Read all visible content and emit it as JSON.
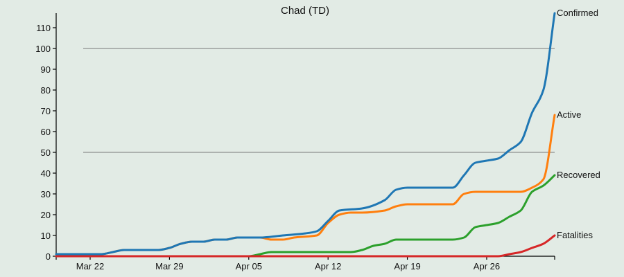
{
  "chart_data": {
    "type": "line",
    "title": "Chad (TD)",
    "xlabel": "",
    "ylabel": "",
    "x_start": "2020-03-19",
    "x_end": "2020-05-01",
    "xlim": [
      "2020-03-19",
      "2020-05-01"
    ],
    "ylim": [
      0,
      117
    ],
    "x_ticks": [
      {
        "date": "2020-03-22",
        "label": "Mar 22"
      },
      {
        "date": "2020-03-29",
        "label": "Mar 29"
      },
      {
        "date": "2020-04-05",
        "label": "Apr 05"
      },
      {
        "date": "2020-04-12",
        "label": "Apr 12"
      },
      {
        "date": "2020-04-19",
        "label": "Apr 19"
      },
      {
        "date": "2020-04-26",
        "label": "Apr 26"
      }
    ],
    "y_ticks": [
      0,
      10,
      20,
      30,
      40,
      50,
      60,
      70,
      80,
      90,
      100,
      110
    ],
    "gridlines_y": [
      50,
      100
    ],
    "series": [
      {
        "name": "Confirmed",
        "color": "#1f77b4",
        "points": [
          [
            "2020-03-19",
            1
          ],
          [
            "2020-03-23",
            1
          ],
          [
            "2020-03-24",
            2
          ],
          [
            "2020-03-25",
            3
          ],
          [
            "2020-03-28",
            3
          ],
          [
            "2020-03-29",
            4
          ],
          [
            "2020-03-30",
            6
          ],
          [
            "2020-03-31",
            7
          ],
          [
            "2020-04-01",
            7
          ],
          [
            "2020-04-02",
            8
          ],
          [
            "2020-04-03",
            8
          ],
          [
            "2020-04-04",
            9
          ],
          [
            "2020-04-06",
            9
          ],
          [
            "2020-04-08",
            10
          ],
          [
            "2020-04-10",
            11
          ],
          [
            "2020-04-11",
            12
          ],
          [
            "2020-04-12",
            17
          ],
          [
            "2020-04-13",
            22
          ],
          [
            "2020-04-15",
            23
          ],
          [
            "2020-04-17",
            27
          ],
          [
            "2020-04-18",
            32
          ],
          [
            "2020-04-19",
            33
          ],
          [
            "2020-04-23",
            33
          ],
          [
            "2020-04-24",
            39
          ],
          [
            "2020-04-25",
            45
          ],
          [
            "2020-04-26",
            46
          ],
          [
            "2020-04-27",
            47
          ],
          [
            "2020-04-28",
            51
          ],
          [
            "2020-04-29",
            55
          ],
          [
            "2020-04-30",
            69
          ],
          [
            "2020-05-01",
            80
          ],
          [
            "2020-05-02",
            117
          ]
        ]
      },
      {
        "name": "Active",
        "color": "#ff7f0e",
        "points": [
          [
            "2020-03-19",
            1
          ],
          [
            "2020-03-23",
            1
          ],
          [
            "2020-03-24",
            2
          ],
          [
            "2020-03-25",
            3
          ],
          [
            "2020-03-28",
            3
          ],
          [
            "2020-03-29",
            4
          ],
          [
            "2020-03-30",
            6
          ],
          [
            "2020-03-31",
            7
          ],
          [
            "2020-04-01",
            7
          ],
          [
            "2020-04-02",
            8
          ],
          [
            "2020-04-03",
            8
          ],
          [
            "2020-04-04",
            9
          ],
          [
            "2020-04-06",
            9
          ],
          [
            "2020-04-07",
            8
          ],
          [
            "2020-04-08",
            8
          ],
          [
            "2020-04-09",
            9
          ],
          [
            "2020-04-11",
            10
          ],
          [
            "2020-04-12",
            16
          ],
          [
            "2020-04-13",
            20
          ],
          [
            "2020-04-14",
            21
          ],
          [
            "2020-04-15",
            21
          ],
          [
            "2020-04-17",
            22
          ],
          [
            "2020-04-18",
            24
          ],
          [
            "2020-04-19",
            25
          ],
          [
            "2020-04-23",
            25
          ],
          [
            "2020-04-24",
            30
          ],
          [
            "2020-04-25",
            31
          ],
          [
            "2020-04-29",
            31
          ],
          [
            "2020-04-30",
            33
          ],
          [
            "2020-05-01",
            37
          ],
          [
            "2020-05-02",
            68
          ]
        ]
      },
      {
        "name": "Recovered",
        "color": "#2ca02c",
        "points": [
          [
            "2020-03-19",
            0
          ],
          [
            "2020-04-05",
            0
          ],
          [
            "2020-04-06",
            1
          ],
          [
            "2020-04-07",
            2
          ],
          [
            "2020-04-14",
            2
          ],
          [
            "2020-04-15",
            3
          ],
          [
            "2020-04-16",
            5
          ],
          [
            "2020-04-17",
            6
          ],
          [
            "2020-04-18",
            8
          ],
          [
            "2020-04-23",
            8
          ],
          [
            "2020-04-24",
            9
          ],
          [
            "2020-04-25",
            14
          ],
          [
            "2020-04-26",
            15
          ],
          [
            "2020-04-27",
            16
          ],
          [
            "2020-04-28",
            19
          ],
          [
            "2020-04-29",
            22
          ],
          [
            "2020-04-30",
            31
          ],
          [
            "2020-05-01",
            34
          ],
          [
            "2020-05-02",
            39
          ]
        ]
      },
      {
        "name": "Fatalities",
        "color": "#d62728",
        "points": [
          [
            "2020-03-19",
            0
          ],
          [
            "2020-04-27",
            0
          ],
          [
            "2020-04-28",
            1
          ],
          [
            "2020-04-29",
            2
          ],
          [
            "2020-04-30",
            4
          ],
          [
            "2020-05-01",
            6
          ],
          [
            "2020-05-02",
            10
          ]
        ]
      }
    ]
  }
}
